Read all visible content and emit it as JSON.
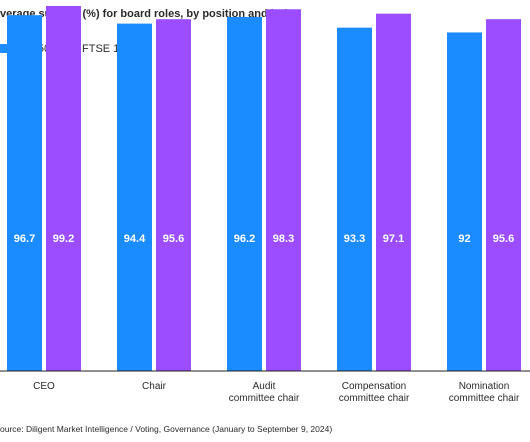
{
  "chart_data": {
    "type": "bar",
    "title": "verage support (%) for board roles, by position and index",
    "legend": {
      "placement": "top-left"
    },
    "categories": [
      [
        "CEO"
      ],
      [
        "Chair"
      ],
      [
        "Audit",
        "committee chair"
      ],
      [
        "Compensation",
        "committee chair"
      ],
      [
        "Nomination",
        "committee chair"
      ]
    ],
    "series": [
      {
        "name": "S&P 500",
        "color": "#1a8cff",
        "values": [
          96.7,
          94.4,
          96.2,
          93.3,
          92
        ]
      },
      {
        "name": "FTSE 100",
        "color": "#9b4dff",
        "values": [
          99.2,
          95.6,
          98.3,
          97.1,
          95.6
        ]
      }
    ],
    "ylim": [
      0,
      100
    ],
    "grid": false,
    "source": "ource: Diligent Market Intelligence / Voting, Governance (January to September 9, 2024)"
  }
}
